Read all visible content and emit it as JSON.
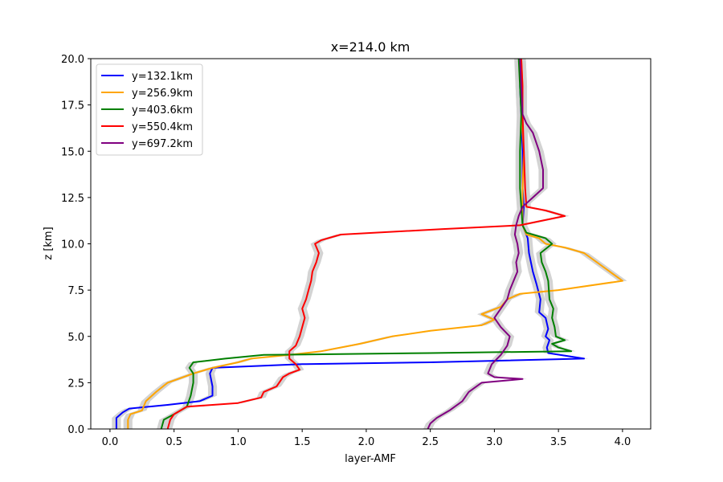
{
  "chart_data": {
    "type": "line",
    "title": "x=214.0 km",
    "xlabel": "layer-AMF",
    "ylabel": "z [km]",
    "xlim": [
      -0.15,
      4.22
    ],
    "ylim": [
      0,
      20
    ],
    "xticks": [
      "0.0",
      "0.5",
      "1.0",
      "1.5",
      "2.0",
      "2.5",
      "3.0",
      "3.5",
      "4.0"
    ],
    "yticks": [
      "0.0",
      "2.5",
      "5.0",
      "7.5",
      "10.0",
      "12.5",
      "15.0",
      "17.5",
      "20.0"
    ],
    "grid": false,
    "legend_position": "top-left",
    "uncertainty_band_color": "#d3d3d3",
    "series": [
      {
        "name": "y=132.1km",
        "color": "#0000ff",
        "points": [
          [
            0.05,
            0
          ],
          [
            0.05,
            0.6
          ],
          [
            0.1,
            0.9
          ],
          [
            0.15,
            1.1
          ],
          [
            0.45,
            1.3
          ],
          [
            0.7,
            1.5
          ],
          [
            0.8,
            1.8
          ],
          [
            0.8,
            2.3
          ],
          [
            0.78,
            3.0
          ],
          [
            0.8,
            3.3
          ],
          [
            1.5,
            3.5
          ],
          [
            2.5,
            3.6
          ],
          [
            3.7,
            3.8
          ],
          [
            3.42,
            4.1
          ],
          [
            3.41,
            4.4
          ],
          [
            3.43,
            4.8
          ],
          [
            3.4,
            5.0
          ],
          [
            3.42,
            5.4
          ],
          [
            3.4,
            6.0
          ],
          [
            3.35,
            6.3
          ],
          [
            3.36,
            7.0
          ],
          [
            3.33,
            7.8
          ],
          [
            3.3,
            8.5
          ],
          [
            3.27,
            9.5
          ],
          [
            3.26,
            10.3
          ],
          [
            3.22,
            11.0
          ],
          [
            3.23,
            12.0
          ],
          [
            3.22,
            13.0
          ],
          [
            3.22,
            15.0
          ],
          [
            3.21,
            17.0
          ],
          [
            3.2,
            18.5
          ],
          [
            3.21,
            20.0
          ]
        ]
      },
      {
        "name": "y=256.9km",
        "color": "#ffa500",
        "points": [
          [
            0.14,
            0
          ],
          [
            0.14,
            0.5
          ],
          [
            0.16,
            0.8
          ],
          [
            0.25,
            1.0
          ],
          [
            0.28,
            1.5
          ],
          [
            0.36,
            2.0
          ],
          [
            0.45,
            2.5
          ],
          [
            0.65,
            3.0
          ],
          [
            0.8,
            3.3
          ],
          [
            1.0,
            3.6
          ],
          [
            1.1,
            3.8
          ],
          [
            1.4,
            4.0
          ],
          [
            1.65,
            4.2
          ],
          [
            1.95,
            4.6
          ],
          [
            2.2,
            5.0
          ],
          [
            2.5,
            5.3
          ],
          [
            2.9,
            5.6
          ],
          [
            3.0,
            5.9
          ],
          [
            2.9,
            6.2
          ],
          [
            3.05,
            6.6
          ],
          [
            3.1,
            7.0
          ],
          [
            3.2,
            7.3
          ],
          [
            3.5,
            7.5
          ],
          [
            4.0,
            8.0
          ],
          [
            3.9,
            8.5
          ],
          [
            3.8,
            9.0
          ],
          [
            3.7,
            9.5
          ],
          [
            3.55,
            9.8
          ],
          [
            3.4,
            10.0
          ],
          [
            3.35,
            10.3
          ],
          [
            3.25,
            10.5
          ],
          [
            3.22,
            11.0
          ],
          [
            3.22,
            12.0
          ],
          [
            3.22,
            13.0
          ],
          [
            3.23,
            15.0
          ],
          [
            3.22,
            16.0
          ],
          [
            3.21,
            17.0
          ],
          [
            3.22,
            18.5
          ],
          [
            3.21,
            20.0
          ]
        ]
      },
      {
        "name": "y=403.6km",
        "color": "#008000",
        "points": [
          [
            0.4,
            0
          ],
          [
            0.42,
            0.5
          ],
          [
            0.5,
            0.8
          ],
          [
            0.6,
            1.2
          ],
          [
            0.63,
            1.8
          ],
          [
            0.65,
            2.5
          ],
          [
            0.65,
            3.0
          ],
          [
            0.62,
            3.3
          ],
          [
            0.65,
            3.6
          ],
          [
            0.9,
            3.8
          ],
          [
            1.2,
            4.0
          ],
          [
            2.5,
            4.1
          ],
          [
            3.6,
            4.2
          ],
          [
            3.5,
            4.4
          ],
          [
            3.45,
            4.6
          ],
          [
            3.55,
            4.8
          ],
          [
            3.48,
            5.0
          ],
          [
            3.47,
            5.5
          ],
          [
            3.45,
            6.0
          ],
          [
            3.46,
            6.5
          ],
          [
            3.43,
            7.0
          ],
          [
            3.42,
            8.0
          ],
          [
            3.4,
            8.5
          ],
          [
            3.37,
            9.0
          ],
          [
            3.36,
            9.5
          ],
          [
            3.45,
            10.0
          ],
          [
            3.4,
            10.3
          ],
          [
            3.25,
            10.6
          ],
          [
            3.22,
            11.0
          ],
          [
            3.21,
            12.0
          ],
          [
            3.2,
            13.0
          ],
          [
            3.2,
            15.0
          ],
          [
            3.21,
            17.0
          ],
          [
            3.2,
            18.5
          ],
          [
            3.19,
            20.0
          ]
        ]
      },
      {
        "name": "y=550.4km",
        "color": "#ff0000",
        "points": [
          [
            0.45,
            0
          ],
          [
            0.47,
            0.5
          ],
          [
            0.5,
            0.8
          ],
          [
            0.6,
            1.2
          ],
          [
            1.0,
            1.4
          ],
          [
            1.18,
            1.7
          ],
          [
            1.2,
            2.0
          ],
          [
            1.3,
            2.3
          ],
          [
            1.35,
            2.8
          ],
          [
            1.4,
            3.0
          ],
          [
            1.48,
            3.2
          ],
          [
            1.45,
            3.5
          ],
          [
            1.4,
            3.8
          ],
          [
            1.4,
            4.2
          ],
          [
            1.45,
            4.5
          ],
          [
            1.48,
            5.0
          ],
          [
            1.5,
            5.5
          ],
          [
            1.52,
            6.0
          ],
          [
            1.5,
            6.5
          ],
          [
            1.53,
            7.0
          ],
          [
            1.55,
            7.5
          ],
          [
            1.57,
            8.0
          ],
          [
            1.58,
            8.5
          ],
          [
            1.61,
            9.0
          ],
          [
            1.63,
            9.5
          ],
          [
            1.6,
            10.0
          ],
          [
            1.65,
            10.2
          ],
          [
            1.8,
            10.5
          ],
          [
            2.6,
            10.8
          ],
          [
            3.2,
            11.0
          ],
          [
            3.55,
            11.5
          ],
          [
            3.4,
            11.8
          ],
          [
            3.25,
            12.0
          ],
          [
            3.24,
            13.0
          ],
          [
            3.23,
            15.0
          ],
          [
            3.22,
            17.0
          ],
          [
            3.22,
            18.5
          ],
          [
            3.21,
            20.0
          ]
        ]
      },
      {
        "name": "y=697.2km",
        "color": "#800080",
        "points": [
          [
            2.48,
            0
          ],
          [
            2.5,
            0.3
          ],
          [
            2.55,
            0.6
          ],
          [
            2.65,
            1.0
          ],
          [
            2.75,
            1.5
          ],
          [
            2.8,
            2.0
          ],
          [
            2.9,
            2.5
          ],
          [
            3.22,
            2.7
          ],
          [
            3.0,
            2.8
          ],
          [
            2.95,
            3.0
          ],
          [
            2.98,
            3.5
          ],
          [
            3.05,
            4.0
          ],
          [
            3.1,
            4.5
          ],
          [
            3.12,
            5.0
          ],
          [
            3.05,
            5.5
          ],
          [
            3.0,
            6.0
          ],
          [
            3.05,
            6.5
          ],
          [
            3.1,
            7.0
          ],
          [
            3.12,
            7.5
          ],
          [
            3.15,
            8.0
          ],
          [
            3.18,
            8.5
          ],
          [
            3.17,
            9.0
          ],
          [
            3.19,
            9.5
          ],
          [
            3.18,
            10.0
          ],
          [
            3.16,
            10.5
          ],
          [
            3.17,
            11.0
          ],
          [
            3.19,
            11.5
          ],
          [
            3.22,
            12.0
          ],
          [
            3.3,
            12.5
          ],
          [
            3.38,
            13.0
          ],
          [
            3.38,
            14.0
          ],
          [
            3.35,
            15.0
          ],
          [
            3.3,
            16.0
          ],
          [
            3.25,
            16.5
          ],
          [
            3.22,
            17.0
          ],
          [
            3.21,
            18.5
          ],
          [
            3.2,
            20.0
          ]
        ]
      }
    ]
  }
}
